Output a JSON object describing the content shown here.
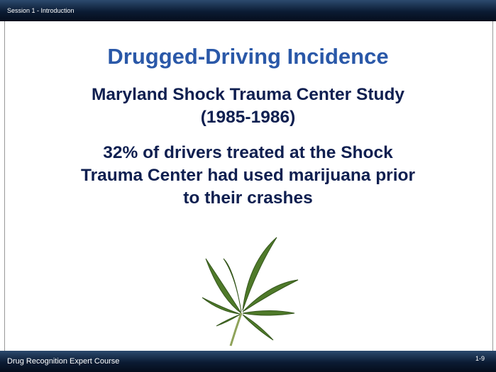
{
  "header": {
    "session": "Session 1 - Introduction"
  },
  "slide": {
    "title": "Drugged-Driving Incidence",
    "subtitle": [
      "Maryland Shock Trauma Center Study",
      "(1985-1986)"
    ],
    "body": [
      "32% of drivers treated at the Shock",
      "Trauma Center had used marijuana prior",
      "to their crashes"
    ]
  },
  "footer": {
    "course": "Drug Recognition Expert Course",
    "page": "1-9"
  }
}
